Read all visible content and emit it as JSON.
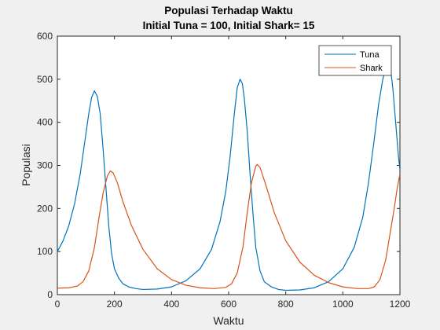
{
  "chart_data": {
    "type": "line",
    "title": "Populasi Terhadap Waktu",
    "subtitle": "Initial Tuna = 100, Initial Shark= 15",
    "xlabel": "Waktu",
    "ylabel": "Populasi",
    "xlim": [
      0,
      1200
    ],
    "ylim": [
      0,
      600
    ],
    "xticks": [
      0,
      200,
      400,
      600,
      800,
      1000,
      1200
    ],
    "yticks": [
      0,
      100,
      200,
      300,
      400,
      500,
      600
    ],
    "grid": false,
    "legend": "top-right",
    "series": [
      {
        "name": "Tuna",
        "color": "#0072bd",
        "points": [
          [
            0,
            100
          ],
          [
            20,
            125
          ],
          [
            40,
            160
          ],
          [
            60,
            210
          ],
          [
            80,
            280
          ],
          [
            95,
            350
          ],
          [
            110,
            420
          ],
          [
            120,
            458
          ],
          [
            130,
            473
          ],
          [
            140,
            460
          ],
          [
            150,
            420
          ],
          [
            160,
            340
          ],
          [
            170,
            250
          ],
          [
            180,
            160
          ],
          [
            190,
            95
          ],
          [
            200,
            60
          ],
          [
            215,
            38
          ],
          [
            230,
            25
          ],
          [
            250,
            18
          ],
          [
            275,
            14
          ],
          [
            300,
            12
          ],
          [
            350,
            13
          ],
          [
            400,
            18
          ],
          [
            450,
            32
          ],
          [
            500,
            60
          ],
          [
            540,
            105
          ],
          [
            570,
            170
          ],
          [
            590,
            240
          ],
          [
            605,
            320
          ],
          [
            620,
            420
          ],
          [
            630,
            480
          ],
          [
            640,
            500
          ],
          [
            648,
            490
          ],
          [
            655,
            455
          ],
          [
            665,
            380
          ],
          [
            675,
            280
          ],
          [
            685,
            190
          ],
          [
            695,
            110
          ],
          [
            710,
            55
          ],
          [
            725,
            30
          ],
          [
            750,
            18
          ],
          [
            775,
            12
          ],
          [
            800,
            10
          ],
          [
            850,
            11
          ],
          [
            900,
            16
          ],
          [
            950,
            30
          ],
          [
            1000,
            60
          ],
          [
            1040,
            110
          ],
          [
            1070,
            180
          ],
          [
            1090,
            260
          ],
          [
            1110,
            360
          ],
          [
            1125,
            440
          ],
          [
            1140,
            500
          ],
          [
            1150,
            525
          ],
          [
            1160,
            535
          ],
          [
            1168,
            520
          ],
          [
            1175,
            480
          ],
          [
            1185,
            400
          ],
          [
            1195,
            320
          ],
          [
            1200,
            290
          ]
        ]
      },
      {
        "name": "Shark",
        "color": "#d95319",
        "points": [
          [
            0,
            15
          ],
          [
            40,
            16
          ],
          [
            70,
            20
          ],
          [
            90,
            30
          ],
          [
            110,
            55
          ],
          [
            130,
            110
          ],
          [
            145,
            175
          ],
          [
            160,
            235
          ],
          [
            175,
            275
          ],
          [
            185,
            287
          ],
          [
            195,
            283
          ],
          [
            210,
            260
          ],
          [
            230,
            215
          ],
          [
            260,
            160
          ],
          [
            300,
            105
          ],
          [
            350,
            60
          ],
          [
            400,
            35
          ],
          [
            450,
            22
          ],
          [
            500,
            16
          ],
          [
            550,
            14
          ],
          [
            590,
            17
          ],
          [
            610,
            25
          ],
          [
            630,
            50
          ],
          [
            650,
            110
          ],
          [
            665,
            190
          ],
          [
            680,
            260
          ],
          [
            695,
            298
          ],
          [
            700,
            302
          ],
          [
            710,
            295
          ],
          [
            730,
            255
          ],
          [
            760,
            190
          ],
          [
            800,
            125
          ],
          [
            850,
            75
          ],
          [
            900,
            45
          ],
          [
            950,
            28
          ],
          [
            1000,
            18
          ],
          [
            1050,
            14
          ],
          [
            1090,
            14
          ],
          [
            1110,
            18
          ],
          [
            1130,
            35
          ],
          [
            1150,
            80
          ],
          [
            1165,
            140
          ],
          [
            1180,
            200
          ],
          [
            1190,
            245
          ],
          [
            1200,
            280
          ]
        ]
      }
    ]
  }
}
